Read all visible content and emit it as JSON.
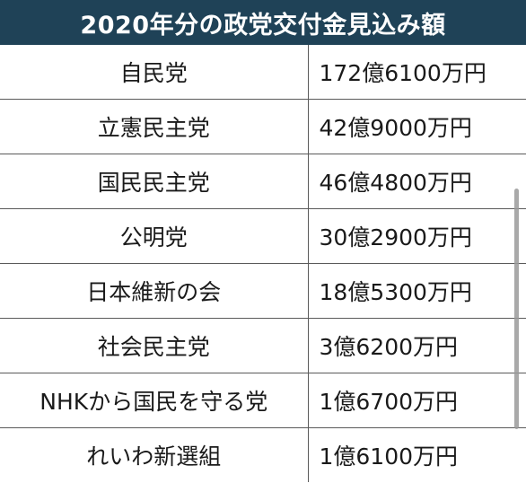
{
  "title": "2020年分の政党交付金見込み額",
  "rows": [
    {
      "party": "自民党",
      "amount": "172億6100万円"
    },
    {
      "party": "立憲民主党",
      "amount": "42億9000万円"
    },
    {
      "party": "国民民主党",
      "amount": "46億4800万円"
    },
    {
      "party": "公明党",
      "amount": "30億2900万円"
    },
    {
      "party": "日本維新の会",
      "amount": "18億5300万円"
    },
    {
      "party": "社会民主党",
      "amount": "3億6200万円"
    },
    {
      "party": "NHKから国民を守る党",
      "amount": "1億6700万円"
    },
    {
      "party": "れいわ新選組",
      "amount": "1億6100万円"
    }
  ],
  "colors": {
    "header_bg": "#1f4257",
    "header_text": "#ffffff",
    "grid": "#5a5a5a"
  }
}
